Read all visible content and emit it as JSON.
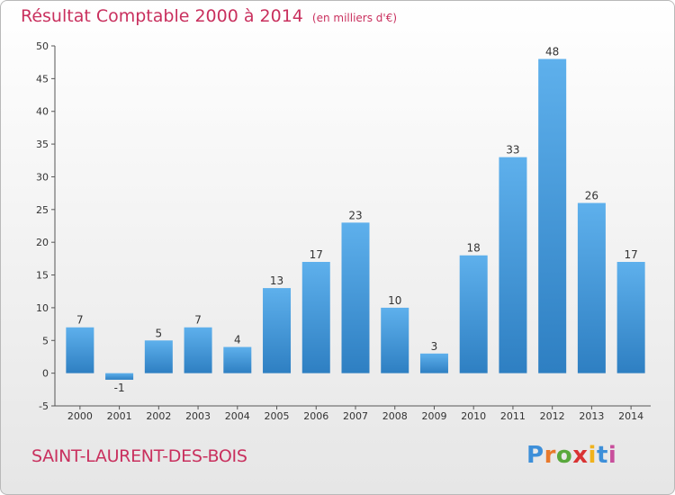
{
  "chart_data": {
    "type": "bar",
    "title": "Résultat Comptable 2000 à 2014",
    "subtitle": "(en milliers d'€)",
    "xlabel": "",
    "ylabel": "",
    "categories": [
      "2000",
      "2001",
      "2002",
      "2003",
      "2004",
      "2005",
      "2006",
      "2007",
      "2008",
      "2009",
      "2010",
      "2011",
      "2012",
      "2013",
      "2014"
    ],
    "values": [
      7,
      -1,
      5,
      7,
      4,
      13,
      17,
      23,
      10,
      3,
      18,
      33,
      48,
      26,
      17
    ],
    "value_labels": [
      "7",
      "-1",
      "5",
      "7",
      "4",
      "13",
      "17",
      "23",
      "10",
      "3",
      "18",
      "33",
      "48",
      "26",
      "17"
    ],
    "ylim": [
      -5,
      50
    ],
    "yticks": [
      -5,
      0,
      5,
      10,
      15,
      20,
      25,
      30,
      35,
      40,
      45,
      50
    ],
    "grid": false,
    "bar_color": "#3a8fd6"
  },
  "footer": {
    "commune": "SAINT-LAURENT-DES-BOIS",
    "logo": [
      "P",
      "r",
      "o",
      "x",
      "i",
      "t",
      "i"
    ]
  }
}
